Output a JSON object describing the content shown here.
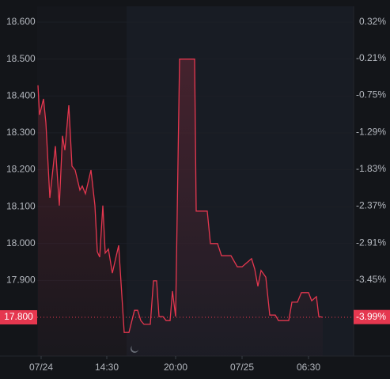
{
  "chart_data": {
    "type": "area",
    "x": [
      1,
      3,
      8,
      11,
      16,
      23,
      28,
      32,
      35,
      40,
      44,
      48,
      54,
      57,
      61,
      68,
      73,
      76,
      79,
      83,
      86,
      90,
      95,
      103,
      110,
      116,
      123,
      127,
      131,
      135,
      143,
      147,
      151,
      154,
      159,
      163,
      168,
      171,
      175,
      180,
      199,
      201,
      215,
      219,
      228,
      233,
      245,
      253,
      259,
      265,
      271,
      275,
      279,
      283,
      289,
      294,
      301,
      305,
      318,
      322,
      329,
      334,
      343,
      347,
      353,
      356,
      361
    ],
    "values": [
      18.429,
      18.349,
      18.392,
      18.328,
      18.124,
      18.264,
      18.103,
      18.292,
      18.253,
      18.375,
      18.21,
      18.199,
      18.145,
      18.156,
      18.135,
      18.199,
      18.103,
      17.978,
      17.963,
      18.103,
      17.974,
      17.985,
      17.92,
      17.995,
      17.759,
      17.759,
      17.819,
      17.819,
      17.791,
      17.781,
      17.781,
      17.899,
      17.899,
      17.802,
      17.802,
      17.791,
      17.791,
      17.871,
      17.802,
      18.5,
      18.5,
      18.088,
      18.088,
      18.0,
      18.0,
      17.967,
      17.967,
      17.937,
      17.937,
      17.948,
      17.959,
      17.931,
      17.884,
      17.927,
      17.909,
      17.806,
      17.806,
      17.791,
      17.791,
      17.841,
      17.841,
      17.867,
      17.867,
      17.845,
      17.856,
      17.802,
      17.8
    ],
    "color": "#e5374f",
    "xlim": [
      0,
      400
    ],
    "xticks": [
      {
        "value": 5,
        "label": "07/24"
      },
      {
        "value": 88,
        "label": "14:30"
      },
      {
        "value": 175,
        "label": "20:00"
      },
      {
        "value": 259,
        "label": "07/25"
      },
      {
        "value": 343,
        "label": "06:30"
      }
    ],
    "ylim": [
      17.695,
      18.643
    ],
    "yticks": [
      {
        "value": 18.6,
        "label": "18.600"
      },
      {
        "value": 18.5,
        "label": "18.500"
      },
      {
        "value": 18.4,
        "label": "18.400"
      },
      {
        "value": 18.3,
        "label": "18.300"
      },
      {
        "value": 18.2,
        "label": "18.200"
      },
      {
        "value": 18.1,
        "label": "18.100"
      },
      {
        "value": 18.0,
        "label": "18.000"
      },
      {
        "value": 17.9,
        "label": "17.900"
      }
    ],
    "y2lim": [
      -4.56,
      0.55
    ],
    "y2ticks": [
      {
        "value": 0.32,
        "label": "0.32%"
      },
      {
        "value": -0.21,
        "label": "-0.21%"
      },
      {
        "value": -0.75,
        "label": "-0.75%"
      },
      {
        "value": -1.29,
        "label": "-1.29%"
      },
      {
        "value": -1.83,
        "label": "-1.83%"
      },
      {
        "value": -2.37,
        "label": "-2.37%"
      },
      {
        "value": -2.91,
        "label": "-2.91%"
      },
      {
        "value": -3.45,
        "label": "-3.45%"
      }
    ],
    "last_price": {
      "value": 17.8,
      "label": "17.800"
    },
    "last_change": {
      "value": -3.99,
      "label": "-3.99%"
    }
  }
}
